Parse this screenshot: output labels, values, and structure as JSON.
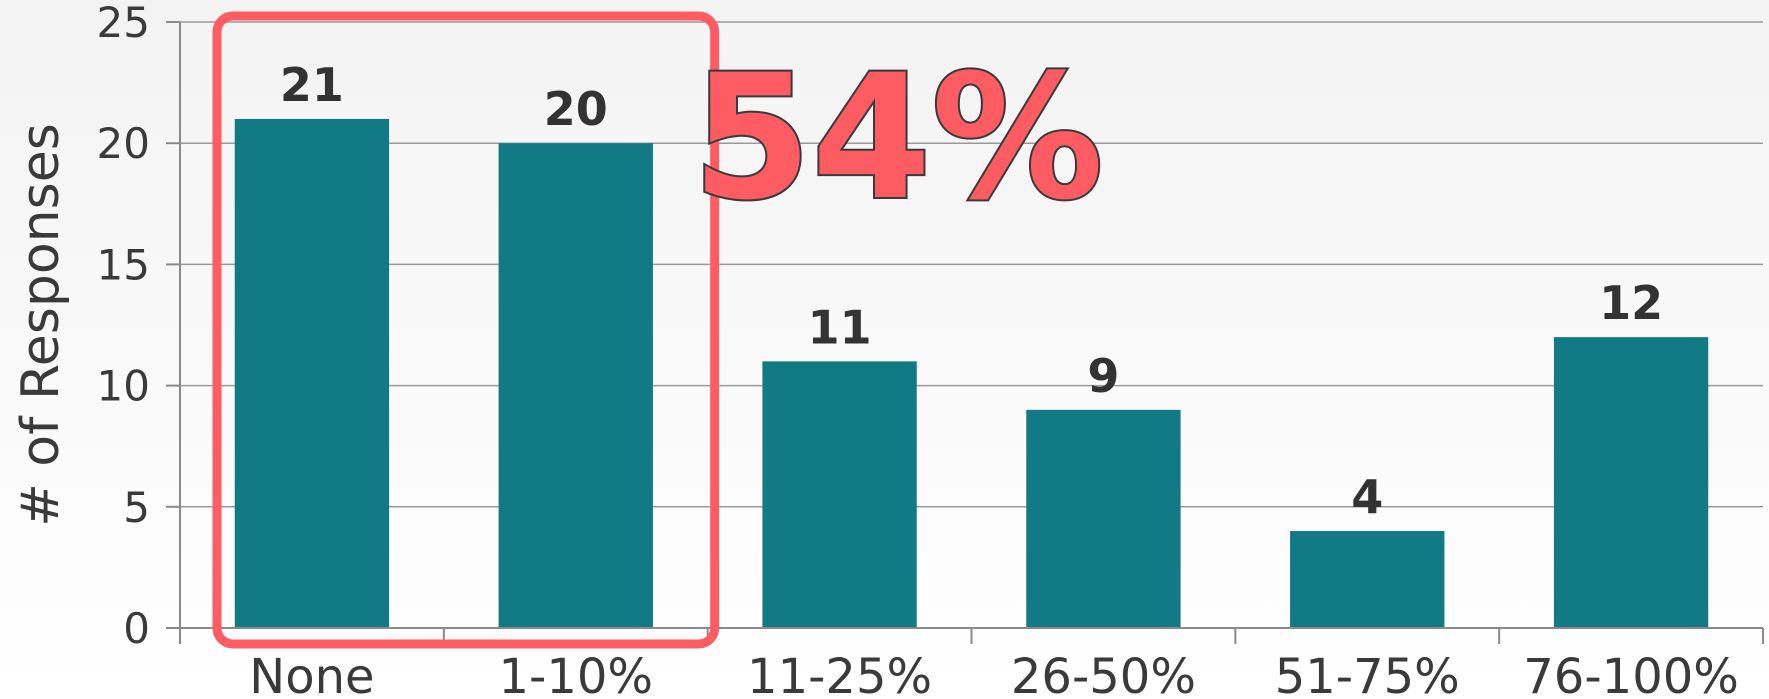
{
  "chart_data": {
    "type": "bar",
    "categories": [
      "None",
      "1-10%",
      "11-25%",
      "26-50%",
      "51-75%",
      "76-100%"
    ],
    "values": [
      21,
      20,
      11,
      9,
      4,
      12
    ],
    "ylabel": "# of Responses",
    "xlabel": "",
    "ylim": [
      0,
      25
    ],
    "yticks": [
      0,
      5,
      10,
      15,
      20,
      25
    ],
    "grid": true,
    "bar_color": "#127a85",
    "data_labels": true
  },
  "annotation": {
    "text": "54%",
    "color": "#fd5c63",
    "highlighted_categories": [
      "None",
      "1-10%"
    ]
  }
}
